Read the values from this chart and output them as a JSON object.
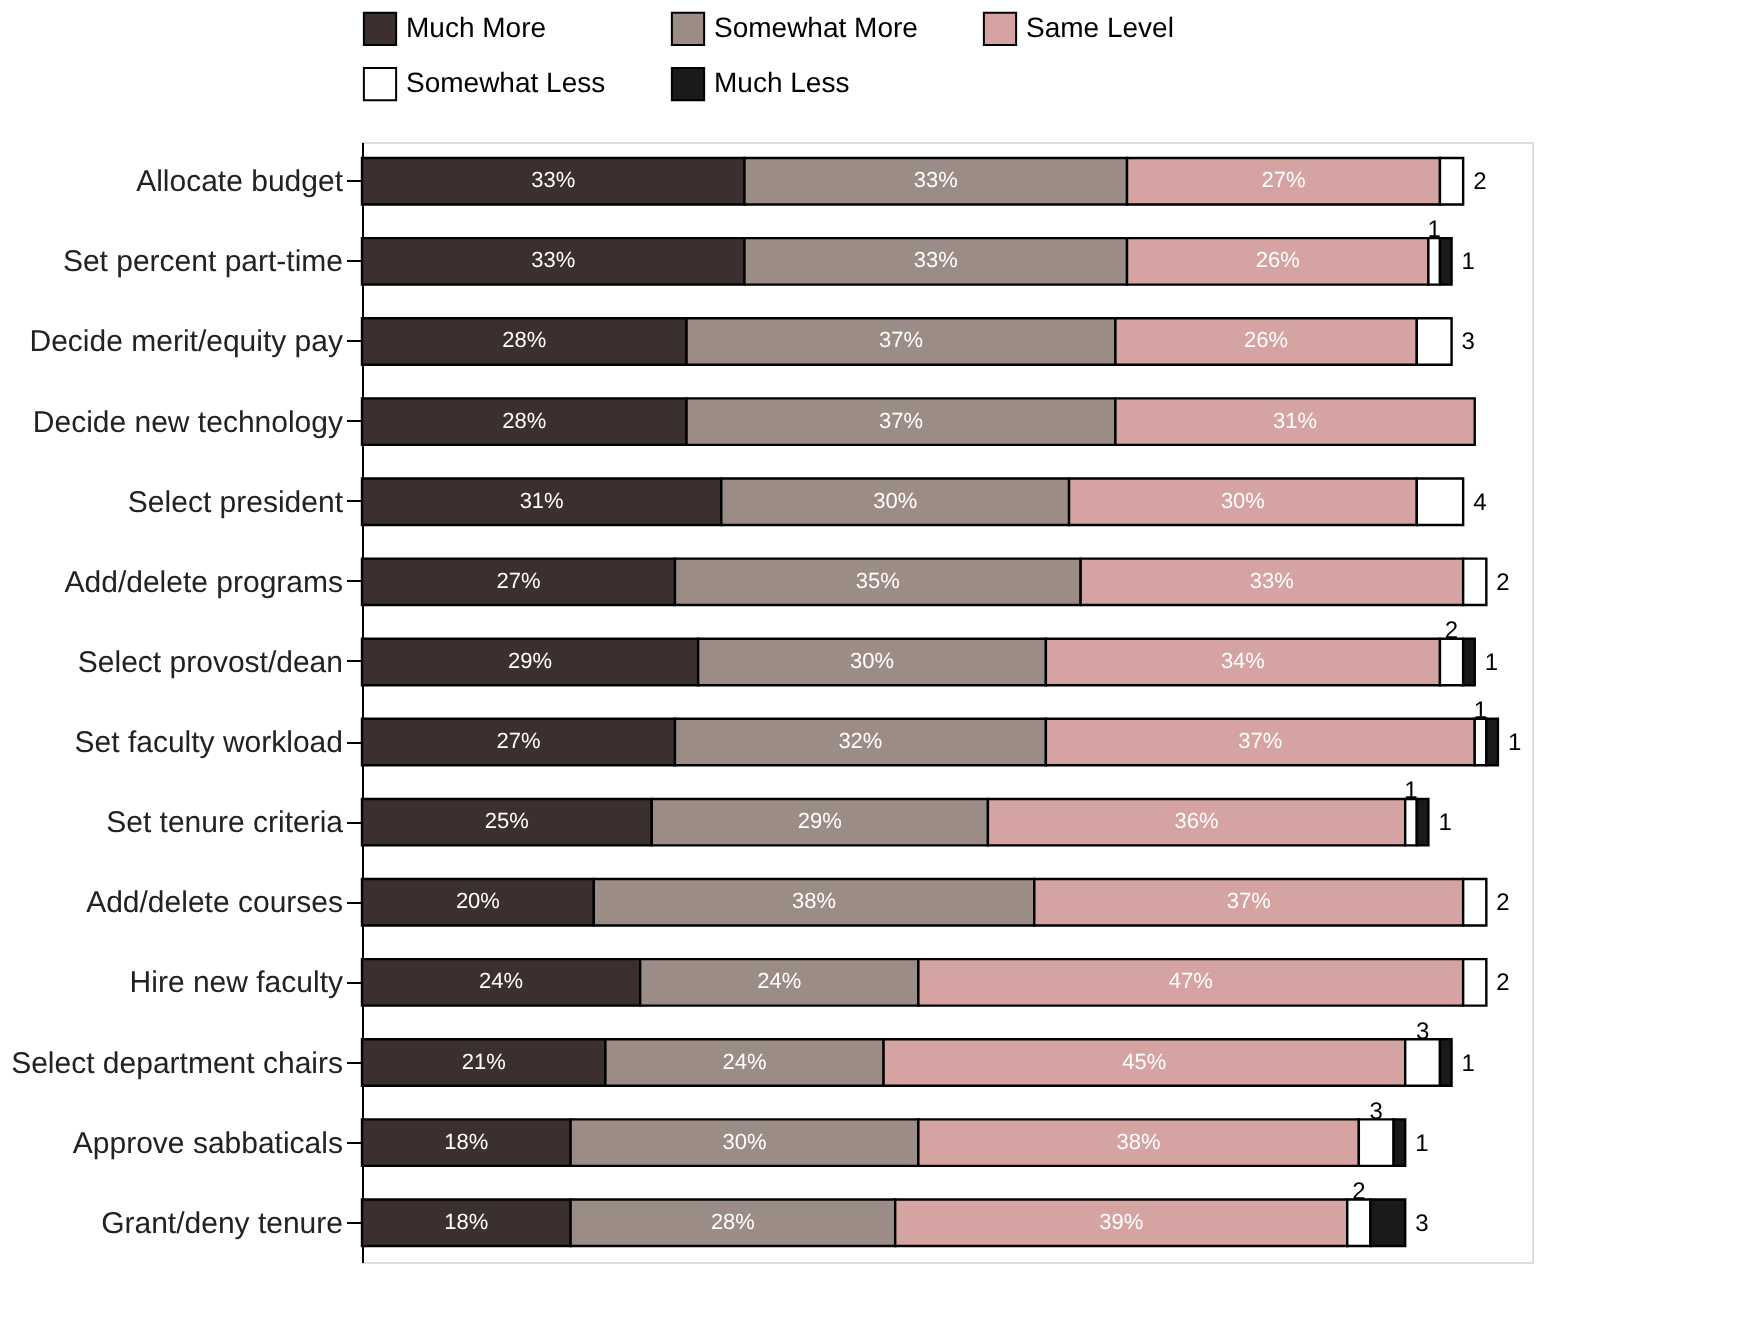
{
  "chart_data": {
    "type": "bar",
    "orientation": "horizontal",
    "stacked": true,
    "legend": "top",
    "categories": [
      "Allocate budget",
      "Set percent part-time",
      "Decide merit/equity pay",
      "Decide new technology",
      "Select president",
      "Add/delete programs",
      "Select provost/dean",
      "Set faculty workload",
      "Set tenure criteria",
      "Add/delete courses",
      "Hire new faculty",
      "Select department chairs",
      "Approve sabbaticals",
      "Grant/deny tenure"
    ],
    "series": [
      {
        "name": "Much More",
        "color": "#3b2f2f",
        "values": [
          33,
          33,
          28,
          28,
          31,
          27,
          29,
          27,
          25,
          20,
          24,
          21,
          18,
          18
        ],
        "value_labels": [
          "33%",
          "33%",
          "28%",
          "28%",
          "31%",
          "27%",
          "29%",
          "27%",
          "25%",
          "20%",
          "24%",
          "21%",
          "18%",
          "18%"
        ]
      },
      {
        "name": "Somewhat More",
        "color": "#9c8c86",
        "values": [
          33,
          33,
          37,
          37,
          30,
          35,
          30,
          32,
          29,
          38,
          24,
          24,
          30,
          28
        ],
        "value_labels": [
          "33%",
          "33%",
          "37%",
          "37%",
          "30%",
          "35%",
          "30%",
          "32%",
          "29%",
          "38%",
          "24%",
          "24%",
          "30%",
          "28%"
        ]
      },
      {
        "name": "Same Level",
        "color": "#d5a3a1",
        "values": [
          27,
          26,
          26,
          31,
          30,
          33,
          34,
          37,
          36,
          37,
          47,
          45,
          38,
          39
        ],
        "value_labels": [
          "27%",
          "26%",
          "26%",
          "31%",
          "30%",
          "33%",
          "34%",
          "37%",
          "36%",
          "37%",
          "47%",
          "45%",
          "38%",
          "39%"
        ]
      },
      {
        "name": "Somewhat Less",
        "color": "#ffffff",
        "values": [
          2,
          1,
          3,
          null,
          4,
          2,
          2,
          1,
          1,
          2,
          2,
          3,
          3,
          2
        ],
        "value_labels": [
          "2",
          "1",
          "3",
          null,
          "4",
          "2",
          "2",
          "1",
          "1",
          "2",
          "2",
          "3",
          "3",
          "2"
        ]
      },
      {
        "name": "Much Less",
        "color": "#1a1a1a",
        "values": [
          null,
          1,
          null,
          null,
          null,
          null,
          1,
          1,
          1,
          null,
          null,
          1,
          1,
          3
        ],
        "value_labels": [
          null,
          "1",
          null,
          null,
          null,
          null,
          "1",
          "1",
          "1",
          null,
          null,
          "1",
          "1",
          "3"
        ]
      }
    ]
  }
}
